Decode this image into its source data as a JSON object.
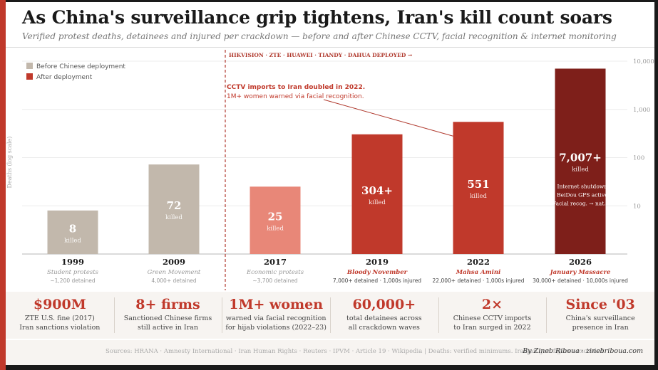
{
  "title": "As China's surveillance grip tightens, Iran's kill count soars",
  "subtitle": "Verified protest deaths, detainees and injured per crackdown — before and after Chinese CCTV, facial recognition & internet monitoring",
  "chart_data": {
    "type": "bar",
    "yscale": "log",
    "ylabel": "Deaths (log scale)",
    "ylim": [
      1,
      10000
    ],
    "yticks": [
      10,
      100,
      1000,
      10000
    ],
    "ytick_labels": [
      "10",
      "100",
      "1,000",
      "10,000"
    ],
    "legend": [
      {
        "label": "Before Chinese deployment",
        "color": "#c2b8ac"
      },
      {
        "label": "After deployment",
        "color": "#c0392b"
      }
    ],
    "deployment_marker": {
      "label": "HIKVISION · ZTE · HUAWEI · TIANDY · DAHUA DEPLOYED →",
      "after_index": 1
    },
    "annotation": {
      "line1": "CCTV imports to Iran doubled in 2022.",
      "line2": "1M+ women warned via facial recognition.",
      "points_to_index": 4
    },
    "bar_unit": "killed",
    "bars": [
      {
        "year": "1999",
        "event": "Student protests",
        "value": 8,
        "value_label": "8",
        "detail": "~1,200 detained",
        "color": "#c2b8ac",
        "event_style": "muted"
      },
      {
        "year": "2009",
        "event": "Green Movement",
        "value": 72,
        "value_label": "72",
        "detail": "4,000+ detained",
        "color": "#c2b8ac",
        "event_style": "muted"
      },
      {
        "year": "2017",
        "event": "Economic protests",
        "value": 25,
        "value_label": "25",
        "detail": "~3,700 detained",
        "color": "#e88778",
        "event_style": "muted"
      },
      {
        "year": "2019",
        "event": "Bloody November",
        "value": 304,
        "value_label": "304+",
        "detail": "7,000+ detained · 1,000s injured",
        "color": "#c0392b",
        "event_style": "bold"
      },
      {
        "year": "2022",
        "event": "Mahsa Amini",
        "value": 551,
        "value_label": "551",
        "detail": "22,000+ detained · 1,000s injured",
        "color": "#c0392b",
        "event_style": "bold"
      },
      {
        "year": "2026",
        "event": "January Massacre",
        "value": 7007,
        "value_label": "7,007+",
        "detail": "30,000+ detained · 10,000s injured",
        "color": "#7e1f1a",
        "event_style": "bold",
        "note": [
          "Internet shutdown.",
          "BeiDou GPS active.",
          "Facial recog. → nat. ID"
        ]
      }
    ]
  },
  "stats": [
    {
      "value": "$900M",
      "line1": "ZTE U.S. fine (2017)",
      "line2": "Iran sanctions violation"
    },
    {
      "value": "8+ firms",
      "line1": "Sanctioned Chinese firms",
      "line2": "still active in Iran"
    },
    {
      "value": "1M+ women",
      "line1": "warned via facial recognition",
      "line2": "for hijab violations (2022–23)"
    },
    {
      "value": "60,000+",
      "line1": "total detainees across",
      "line2": "all crackdown waves"
    },
    {
      "value": "2×",
      "line1": "Chinese CCTV imports",
      "line2": "to Iran surged in 2022"
    },
    {
      "value": "Since '03",
      "line1": "China's surveillance",
      "line2": "presence in Iran"
    }
  ],
  "footer": {
    "sources": "Sources: HRANA · Amnesty International · Iran Human Rights · Reuters · IPVM · Article 19 · Wikipedia | Deaths: verified minimums. Iranian.gov. figures excluded.",
    "byline": "By Zineb Riboua · zinebriboua.com"
  }
}
